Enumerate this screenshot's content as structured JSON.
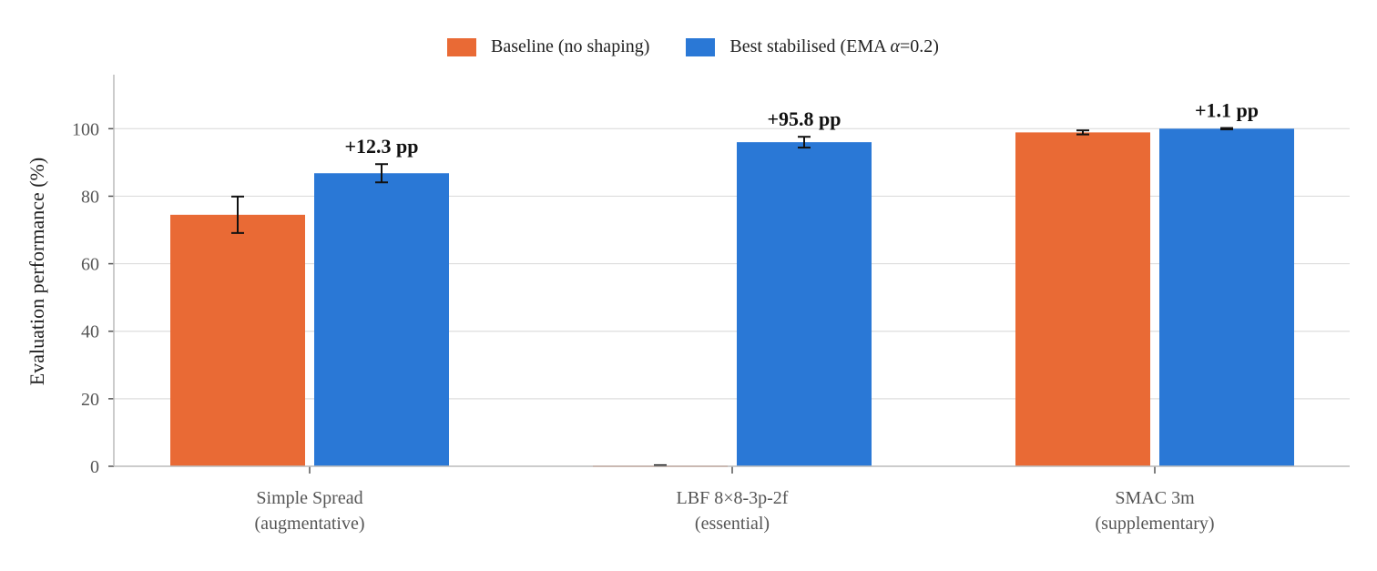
{
  "chart_data": {
    "type": "bar",
    "categories": [
      {
        "line1": "Simple Spread",
        "line2": "(augmentative)"
      },
      {
        "line1": "LBF 8×8-3p-2f",
        "line2": "(essential)"
      },
      {
        "line1": "SMAC 3m",
        "line2": "(supplementary)"
      }
    ],
    "series": [
      {
        "name": "Baseline (no shaping)",
        "color": "#E96A35",
        "values": [
          74.5,
          0.2,
          98.9
        ],
        "errors": [
          5.4,
          0.1,
          0.6
        ]
      },
      {
        "name_prefix": "Best stabilised (EMA ",
        "name_symbol": "α",
        "name_suffix": "=0.2)",
        "color": "#2A78D6",
        "values": [
          86.8,
          96.0,
          100.0
        ],
        "errors": [
          2.7,
          1.6,
          0.2
        ]
      }
    ],
    "annotations": [
      "+12.3 pp",
      "+95.8 pp",
      "+1.1 pp"
    ],
    "ylabel": "Evaluation performance (%)",
    "xlabel": "",
    "ylim": [
      0,
      116
    ],
    "yticks": [
      0,
      20,
      40,
      60,
      80,
      100
    ],
    "grid": true,
    "legend_position": "top-center"
  }
}
